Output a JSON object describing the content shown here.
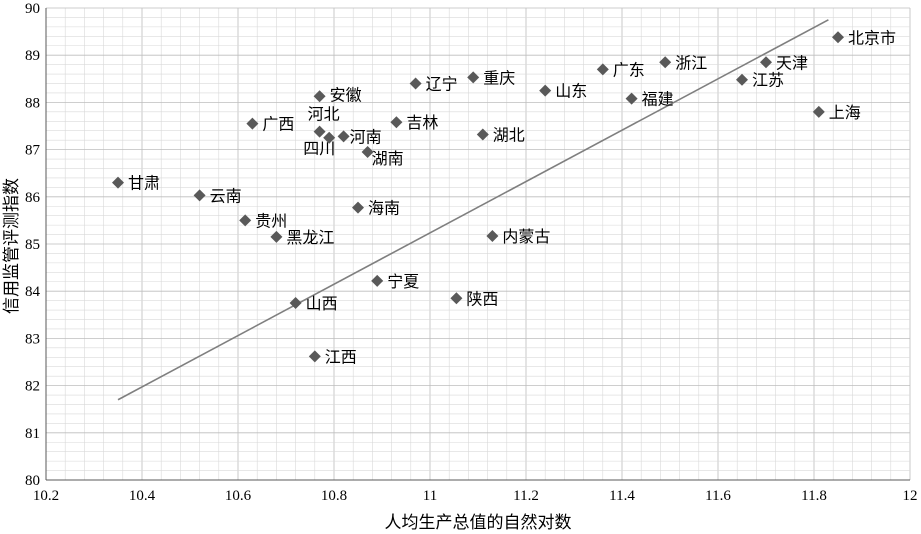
{
  "chart_data": {
    "type": "scatter",
    "xlabel": "人均生产总值的自然对数",
    "ylabel": "信用监管评测指数",
    "xlim": [
      10.2,
      12
    ],
    "ylim": [
      80,
      90
    ],
    "x_ticks": [
      "10.2",
      "10.4",
      "10.6",
      "10.8",
      "11",
      "11.2",
      "11.4",
      "11.6",
      "11.8",
      "12"
    ],
    "y_ticks": [
      "80",
      "81",
      "82",
      "83",
      "84",
      "85",
      "86",
      "87",
      "88",
      "89",
      "90"
    ],
    "grid": true,
    "marker_color": "#595959",
    "trendline": {
      "from": [
        10.35,
        81.7
      ],
      "to": [
        11.83,
        89.75
      ],
      "color": "#7f7f7f"
    },
    "points": [
      {
        "label": "北京市",
        "x": 11.85,
        "y": 89.38
      },
      {
        "label": "天津",
        "x": 11.7,
        "y": 88.85
      },
      {
        "label": "浙江",
        "x": 11.49,
        "y": 88.85
      },
      {
        "label": "广东",
        "x": 11.36,
        "y": 88.7
      },
      {
        "label": "江苏",
        "x": 11.65,
        "y": 88.48
      },
      {
        "label": "重庆",
        "x": 11.09,
        "y": 88.53
      },
      {
        "label": "辽宁",
        "x": 10.97,
        "y": 88.4
      },
      {
        "label": "山东",
        "x": 11.24,
        "y": 88.25
      },
      {
        "label": "福建",
        "x": 11.42,
        "y": 88.08
      },
      {
        "label": "安徽",
        "x": 10.77,
        "y": 88.13
      },
      {
        "label": "上海",
        "x": 11.81,
        "y": 87.8
      },
      {
        "label": "广西",
        "x": 10.63,
        "y": 87.55
      },
      {
        "label": "吉林",
        "x": 10.93,
        "y": 87.58
      },
      {
        "label": "河北",
        "x": 10.77,
        "y": 87.38
      },
      {
        "label": "湖北",
        "x": 11.11,
        "y": 87.32
      },
      {
        "label": "河南",
        "x": 10.82,
        "y": 87.28
      },
      {
        "label": "四川",
        "x": 10.79,
        "y": 87.25
      },
      {
        "label": "湖南",
        "x": 10.87,
        "y": 86.95
      },
      {
        "label": "甘肃",
        "x": 10.35,
        "y": 86.3
      },
      {
        "label": "云南",
        "x": 10.52,
        "y": 86.03
      },
      {
        "label": "海南",
        "x": 10.85,
        "y": 85.77
      },
      {
        "label": "贵州",
        "x": 10.615,
        "y": 85.5
      },
      {
        "label": "黑龙江",
        "x": 10.68,
        "y": 85.15
      },
      {
        "label": "内蒙古",
        "x": 11.13,
        "y": 85.17
      },
      {
        "label": "宁夏",
        "x": 10.89,
        "y": 84.22
      },
      {
        "label": "陕西",
        "x": 11.055,
        "y": 83.85
      },
      {
        "label": "山西",
        "x": 10.72,
        "y": 83.75
      },
      {
        "label": "江西",
        "x": 10.76,
        "y": 82.62
      }
    ]
  }
}
